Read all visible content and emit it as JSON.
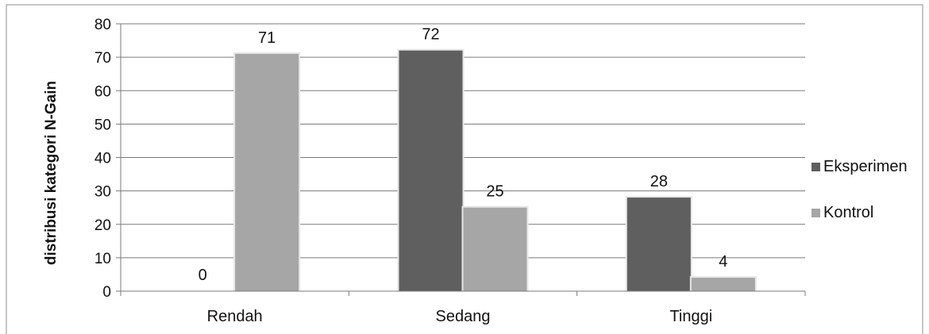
{
  "chart_data": {
    "type": "bar",
    "title": "",
    "xlabel": "",
    "ylabel": "distribusi kategori N-Gain",
    "categories": [
      "Rendah",
      "Sedang",
      "Tinggi"
    ],
    "ylim": [
      0,
      80
    ],
    "yticks": [
      0,
      10,
      20,
      30,
      40,
      50,
      60,
      70,
      80
    ],
    "grid": true,
    "legend_position": "right",
    "data_labels": true,
    "series": [
      {
        "name": "Eksperimen",
        "values": [
          0,
          72,
          28
        ],
        "color": "#5f5f5f"
      },
      {
        "name": "Kontrol",
        "values": [
          71,
          25,
          4
        ],
        "color": "#a6a6a6"
      }
    ]
  }
}
